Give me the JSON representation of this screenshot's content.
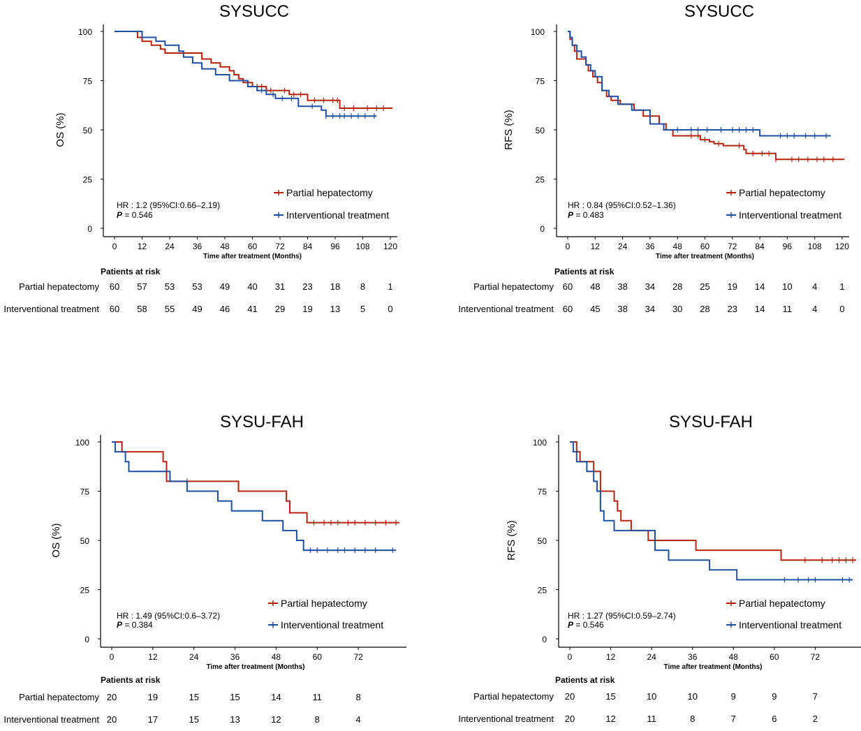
{
  "colors": {
    "partial": "#b5230f",
    "interventional": "#1f4fa0"
  },
  "chart_data": [
    {
      "type": "line",
      "title": "SYSUCC",
      "ylabel": "OS (%)",
      "xlabel": "Time after treatment (Months)",
      "xticks": [
        0,
        12,
        24,
        36,
        48,
        60,
        72,
        84,
        96,
        108,
        120
      ],
      "yticks": [
        0,
        25,
        50,
        75,
        100
      ],
      "xlim": [
        0,
        120
      ],
      "ylim": [
        0,
        100
      ],
      "hr_text": "HR : 1.2 (95%CI:0.66–2.19)",
      "p_label": "P",
      "p_value": " = 0.546",
      "risk_header": "Patients at risk",
      "series": [
        {
          "name": "Partial hepatectomy",
          "x": [
            0,
            8,
            10,
            12,
            16,
            20,
            22,
            28,
            38,
            42,
            46,
            50,
            52,
            54,
            56,
            60,
            66,
            76,
            84,
            98,
            104,
            121
          ],
          "y": [
            100,
            100,
            97,
            95,
            93,
            91,
            89,
            89,
            86,
            84,
            82,
            80,
            78,
            76,
            74,
            72,
            70,
            68,
            65,
            61,
            61,
            61
          ],
          "censor_x": [
            62,
            64,
            68,
            74,
            78,
            81,
            87,
            91,
            95,
            97,
            100,
            104,
            110,
            114,
            117
          ],
          "at_risk": [
            60,
            57,
            53,
            53,
            49,
            40,
            31,
            23,
            18,
            8,
            1
          ]
        },
        {
          "name": "Interventional treatment",
          "x": [
            0,
            9,
            12,
            18,
            22,
            28,
            30,
            34,
            38,
            44,
            50,
            58,
            62,
            66,
            70,
            80,
            90,
            92,
            114
          ],
          "y": [
            100,
            100,
            97,
            95,
            93,
            90,
            87,
            84,
            81,
            78,
            75,
            72,
            70,
            68,
            66,
            62,
            60,
            57,
            57
          ],
          "censor_x": [
            64,
            69,
            73,
            77,
            86,
            92,
            95,
            98,
            100,
            103,
            106,
            109,
            113
          ],
          "at_risk": [
            60,
            58,
            55,
            49,
            46,
            41,
            29,
            19,
            13,
            5,
            0
          ]
        }
      ]
    },
    {
      "type": "line",
      "title": "SYSUCC",
      "ylabel": "RFS (%)",
      "xlabel": "Time after treatment (Months)",
      "xticks": [
        0,
        12,
        24,
        36,
        48,
        60,
        72,
        84,
        96,
        108,
        120
      ],
      "yticks": [
        0,
        25,
        50,
        75,
        100
      ],
      "xlim": [
        0,
        120
      ],
      "ylim": [
        0,
        100
      ],
      "hr_text": "HR : 0.84 (95%CI:0.52–1.36)",
      "p_label": "P",
      "p_value": " = 0.483",
      "risk_header": "Patients at risk",
      "series": [
        {
          "name": "Partial hepatectomy",
          "x": [
            0,
            1,
            2,
            3,
            4,
            8,
            9,
            11,
            13,
            15,
            17,
            19,
            23,
            29,
            33,
            40,
            43,
            46,
            52,
            58,
            62,
            64,
            68,
            77,
            78,
            84,
            91,
            100,
            121
          ],
          "y": [
            100,
            96,
            93,
            90,
            86,
            83,
            80,
            77,
            74,
            70,
            67,
            65,
            63,
            60,
            57,
            53,
            50,
            47,
            47,
            45,
            44,
            43,
            42,
            40,
            38,
            38,
            35,
            35,
            35
          ],
          "censor_x": [
            54,
            57,
            60,
            66,
            75,
            81,
            85,
            88,
            91,
            98,
            101,
            105,
            109,
            112,
            116
          ],
          "at_risk": [
            60,
            48,
            38,
            34,
            28,
            25,
            19,
            14,
            10,
            4,
            1
          ]
        },
        {
          "name": "Interventional treatment",
          "x": [
            0,
            1,
            2,
            4,
            6,
            8,
            10,
            12,
            15,
            18,
            22,
            28,
            36,
            42,
            84,
            115
          ],
          "y": [
            100,
            97,
            93,
            90,
            87,
            83,
            80,
            77,
            70,
            67,
            63,
            60,
            53,
            50,
            47,
            47
          ],
          "censor_x": [
            48,
            54,
            57,
            61,
            67,
            72,
            75,
            78,
            81,
            93,
            96,
            99,
            104,
            108,
            113
          ],
          "at_risk": [
            60,
            45,
            38,
            34,
            30,
            28,
            23,
            14,
            11,
            4,
            0
          ]
        }
      ]
    },
    {
      "type": "line",
      "title": "SYSU-FAH",
      "ylabel": "OS (%)",
      "xlabel": "Time after treatment (Months)",
      "xticks": [
        0,
        12,
        24,
        36,
        48,
        60,
        72
      ],
      "yticks": [
        0,
        25,
        50,
        75,
        100
      ],
      "xlim": [
        0,
        84
      ],
      "ylim": [
        0,
        100
      ],
      "hr_text": "HR : 1.49 (95%CI:0.6–3.72)",
      "p_label": "P",
      "p_value": " = 0.384",
      "risk_header": "Patients at risk",
      "series": [
        {
          "name": "Partial hepatectomy",
          "x": [
            0,
            3,
            14,
            15,
            16,
            37,
            50,
            51,
            52,
            57,
            84
          ],
          "y": [
            100,
            95,
            95,
            90,
            80,
            75,
            75,
            70,
            64,
            59,
            59
          ],
          "censor_x": [
            22,
            59,
            62,
            64,
            66,
            69,
            71,
            74,
            77,
            80,
            83
          ],
          "at_risk": [
            20,
            19,
            15,
            15,
            14,
            11,
            8
          ]
        },
        {
          "name": "Interventional treatment",
          "x": [
            0,
            1,
            4,
            5,
            17,
            22,
            31,
            35,
            44,
            50,
            54,
            56,
            83
          ],
          "y": [
            100,
            95,
            90,
            85,
            80,
            75,
            70,
            65,
            60,
            55,
            50,
            45,
            45
          ],
          "censor_x": [
            58,
            60,
            63,
            66,
            68,
            71,
            74,
            77,
            82
          ],
          "at_risk": [
            20,
            17,
            15,
            13,
            12,
            8,
            4
          ]
        }
      ]
    },
    {
      "type": "line",
      "title": "SYSU-FAH",
      "ylabel": "RFS (%)",
      "xlabel": "Time after treatment (Months)",
      "xticks": [
        0,
        12,
        24,
        36,
        48,
        60,
        72
      ],
      "yticks": [
        0,
        25,
        50,
        75,
        100
      ],
      "xlim": [
        0,
        84
      ],
      "ylim": [
        0,
        100
      ],
      "hr_text": "HR : 1.27 (95%CI:0.59–2.74)",
      "p_label": "P",
      "p_value": " = 0.546",
      "risk_header": "Patients at risk",
      "series": [
        {
          "name": "Partial hepatectomy",
          "x": [
            0,
            2,
            3,
            7,
            9,
            13,
            14,
            15,
            18,
            23,
            37,
            62,
            84
          ],
          "y": [
            100,
            95,
            90,
            85,
            75,
            70,
            65,
            60,
            55,
            50,
            45,
            40,
            40
          ],
          "censor_x": [
            69,
            74,
            77,
            79,
            81,
            83
          ],
          "at_risk": [
            20,
            15,
            10,
            10,
            9,
            9,
            7
          ]
        },
        {
          "name": "Interventional treatment",
          "x": [
            0,
            1,
            2,
            5,
            7,
            8,
            9,
            10,
            13,
            25,
            29,
            41,
            49,
            83
          ],
          "y": [
            100,
            95,
            90,
            85,
            80,
            75,
            65,
            60,
            55,
            45,
            40,
            35,
            30,
            30
          ],
          "censor_x": [
            63,
            67,
            70,
            72,
            80,
            82
          ],
          "at_risk": [
            20,
            12,
            11,
            8,
            7,
            6,
            2
          ]
        }
      ]
    }
  ]
}
